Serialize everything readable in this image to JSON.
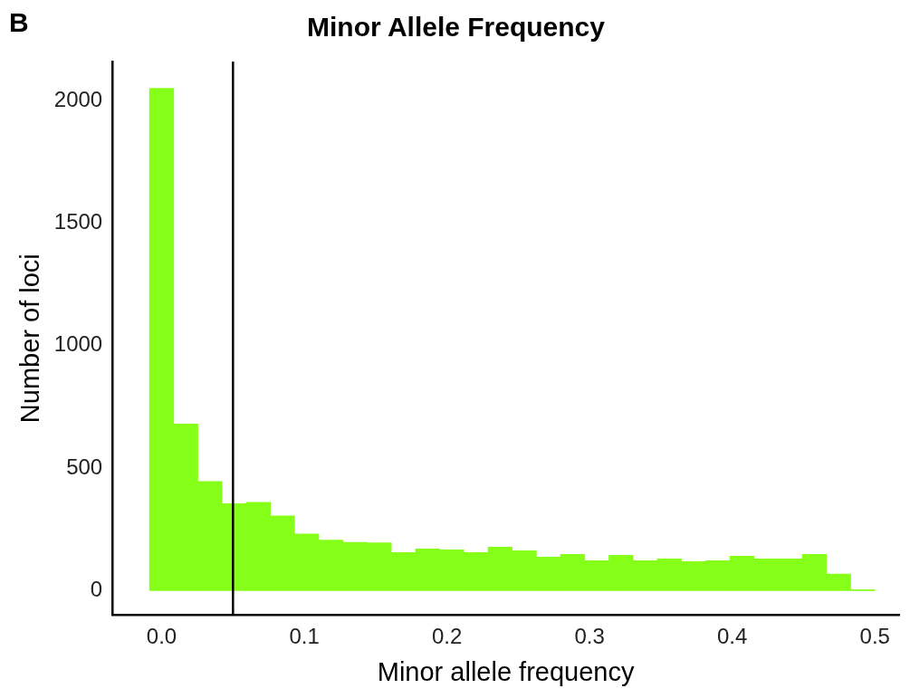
{
  "chart_data": {
    "type": "histogram",
    "title": "Minor Allele Frequency",
    "xlabel": "Minor allele frequency",
    "ylabel": "Number of loci",
    "annotations": [
      "B"
    ],
    "bins": [
      -0.0085,
      0.00845,
      0.0254,
      0.04235,
      0.0593,
      0.07625,
      0.0932,
      0.11015,
      0.1271,
      0.14405,
      0.161,
      0.17795,
      0.1949,
      0.21185,
      0.2288,
      0.24575,
      0.2627,
      0.27965,
      0.2966,
      0.31355,
      0.3305,
      0.34745,
      0.3644,
      0.38135,
      0.3983,
      0.41525,
      0.4322,
      0.44915,
      0.4661,
      0.48305,
      0.5
    ],
    "values": [
      2050,
      680,
      445,
      355,
      360,
      305,
      231,
      206,
      197,
      195,
      155,
      170,
      166,
      155,
      177,
      163,
      137,
      148,
      122,
      144,
      122,
      129,
      118,
      122,
      140,
      129,
      129,
      148,
      67,
      4
    ],
    "color": "#86ff18",
    "xlim": [
      -0.0345,
      0.517
    ],
    "xticks": [
      {
        "value": 0,
        "label": "0.0"
      },
      {
        "value": 0.1,
        "label": "0.1"
      },
      {
        "value": 0.2,
        "label": "0.2"
      },
      {
        "value": 0.3,
        "label": "0.3"
      },
      {
        "value": 0.4,
        "label": "0.4"
      },
      {
        "value": 0.5,
        "label": "0.5"
      }
    ],
    "ylim": [
      -100,
      2159
    ],
    "yticks": [
      0,
      500,
      1000,
      1500,
      2000
    ],
    "ref_lines": [
      {
        "axis": "x",
        "value": 0.05,
        "color": "#000000"
      }
    ],
    "grid": false,
    "legend": false
  }
}
